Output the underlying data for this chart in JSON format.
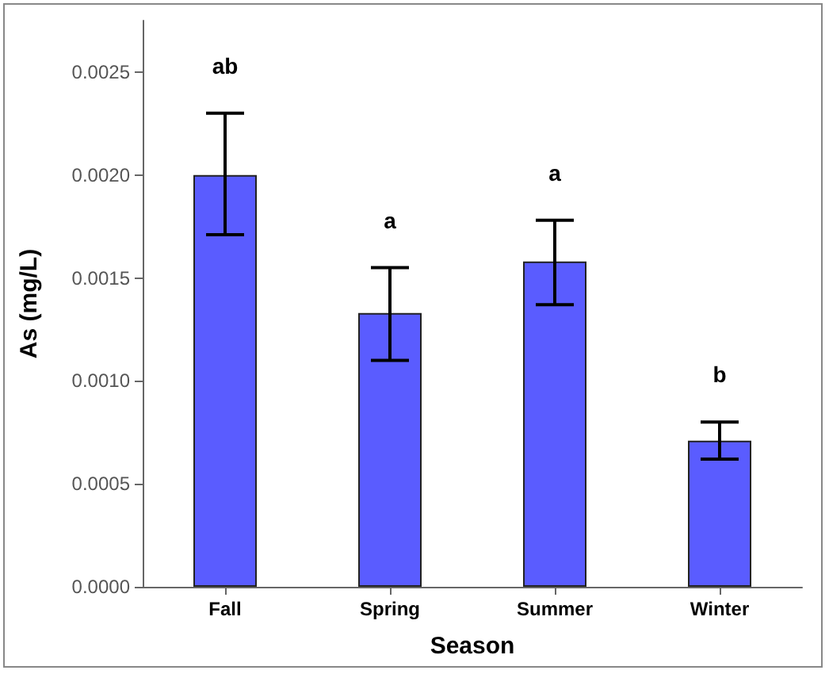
{
  "chart_data": {
    "type": "bar",
    "xlabel": "Season",
    "ylabel": "As (mg/L)",
    "categories": [
      "Fall",
      "Spring",
      "Summer",
      "Winter"
    ],
    "values": [
      0.002,
      0.00133,
      0.00158,
      0.00071
    ],
    "errors": [
      [
        0.00171,
        0.0023
      ],
      [
        0.0011,
        0.00155
      ],
      [
        0.00137,
        0.00178
      ],
      [
        0.00062,
        0.0008
      ]
    ],
    "color": "#5a5cff",
    "ylim": [
      0,
      0.00275
    ],
    "yticks": [
      {
        "value": 0,
        "label": "0.0000"
      },
      {
        "value": 0.0005,
        "label": "0.0005"
      },
      {
        "value": 0.001,
        "label": "0.0010"
      },
      {
        "value": 0.0015,
        "label": "0.0015"
      },
      {
        "value": 0.002,
        "label": "0.0020"
      },
      {
        "value": 0.0025,
        "label": "0.0025"
      }
    ],
    "grid": false,
    "annotations": [
      "ab",
      "a",
      "a",
      "b"
    ]
  }
}
